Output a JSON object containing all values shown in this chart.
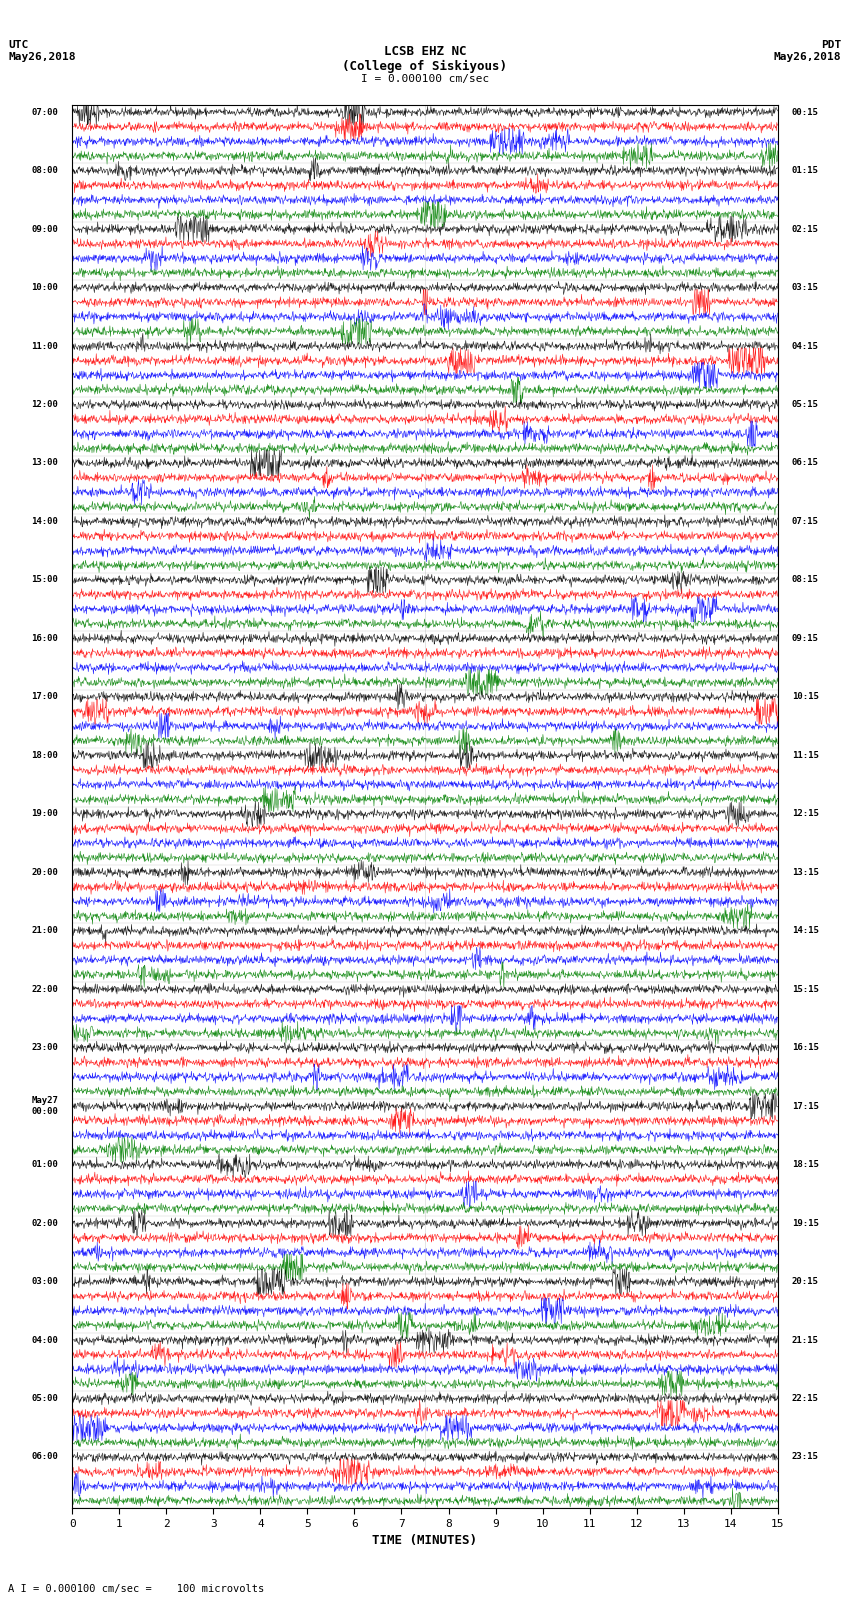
{
  "title_line1": "LCSB EHZ NC",
  "title_line2": "(College of Siskiyous)",
  "scale_label": "I = 0.000100 cm/sec",
  "utc_label": "UTC\nMay26,2018",
  "pdt_label": "PDT\nMay26,2018",
  "bottom_label": "A I = 0.000100 cm/sec =    100 microvolts",
  "xlabel": "TIME (MINUTES)",
  "left_times": [
    "07:00",
    "",
    "",
    "",
    "08:00",
    "",
    "",
    "",
    "09:00",
    "",
    "",
    "",
    "10:00",
    "",
    "",
    "",
    "11:00",
    "",
    "",
    "",
    "12:00",
    "",
    "",
    "",
    "13:00",
    "",
    "",
    "",
    "14:00",
    "",
    "",
    "",
    "15:00",
    "",
    "",
    "",
    "16:00",
    "",
    "",
    "",
    "17:00",
    "",
    "",
    "",
    "18:00",
    "",
    "",
    "",
    "19:00",
    "",
    "",
    "",
    "20:00",
    "",
    "",
    "",
    "21:00",
    "",
    "",
    "",
    "22:00",
    "",
    "",
    "",
    "23:00",
    "",
    "",
    "",
    "May27\n00:00",
    "",
    "",
    "",
    "01:00",
    "",
    "",
    "",
    "02:00",
    "",
    "",
    "",
    "03:00",
    "",
    "",
    "",
    "04:00",
    "",
    "",
    "",
    "05:00",
    "",
    "",
    "",
    "06:00",
    "",
    "",
    ""
  ],
  "right_times": [
    "00:15",
    "",
    "",
    "",
    "01:15",
    "",
    "",
    "",
    "02:15",
    "",
    "",
    "",
    "03:15",
    "",
    "",
    "",
    "04:15",
    "",
    "",
    "",
    "05:15",
    "",
    "",
    "",
    "06:15",
    "",
    "",
    "",
    "07:15",
    "",
    "",
    "",
    "08:15",
    "",
    "",
    "",
    "09:15",
    "",
    "",
    "",
    "10:15",
    "",
    "",
    "",
    "11:15",
    "",
    "",
    "",
    "12:15",
    "",
    "",
    "",
    "13:15",
    "",
    "",
    "",
    "14:15",
    "",
    "",
    "",
    "15:15",
    "",
    "",
    "",
    "16:15",
    "",
    "",
    "",
    "17:15",
    "",
    "",
    "",
    "18:15",
    "",
    "",
    "",
    "19:15",
    "",
    "",
    "",
    "20:15",
    "",
    "",
    "",
    "21:15",
    "",
    "",
    "",
    "22:15",
    "",
    "",
    "",
    "23:15",
    "",
    "",
    ""
  ],
  "trace_colors": [
    "black",
    "red",
    "blue",
    "green"
  ],
  "n_traces": 96,
  "x_min": 0,
  "x_max": 15,
  "bg_color": "white",
  "trace_amplitude": 0.35,
  "noise_amplitude": 0.15,
  "event_amplitude": 1.5,
  "seed": 42
}
